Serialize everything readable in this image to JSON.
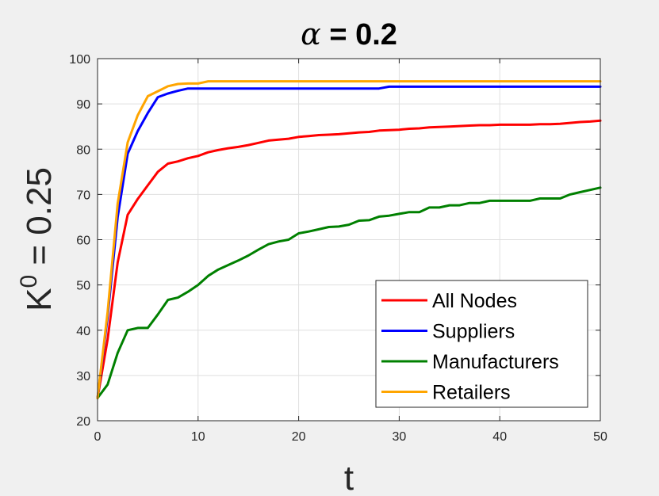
{
  "chart_data": {
    "type": "line",
    "title": {
      "symbol": "α",
      "rest": " = 0.2"
    },
    "xlabel": "t",
    "ylabel": {
      "base": "K",
      "sup": "0",
      "rest": " = 0.25"
    },
    "xlim": [
      0,
      50
    ],
    "ylim": [
      20,
      100
    ],
    "xticks": [
      0,
      10,
      20,
      30,
      40,
      50
    ],
    "yticks": [
      20,
      30,
      40,
      50,
      60,
      70,
      80,
      90,
      100
    ],
    "grid": true,
    "legend_position": "bottom-right",
    "x": [
      0,
      1,
      2,
      3,
      4,
      5,
      6,
      7,
      8,
      9,
      10,
      11,
      12,
      13,
      14,
      15,
      16,
      17,
      18,
      19,
      20,
      21,
      22,
      23,
      24,
      25,
      26,
      27,
      28,
      29,
      30,
      31,
      32,
      33,
      34,
      35,
      36,
      37,
      38,
      39,
      40,
      41,
      42,
      43,
      44,
      45,
      46,
      47,
      48,
      49,
      50
    ],
    "series": [
      {
        "name": "All Nodes",
        "color": "#ff0000",
        "values": [
          25,
          38,
          55,
          65.5,
          69,
          72,
          75,
          76.8,
          77.3,
          78,
          78.5,
          79.3,
          79.8,
          80.2,
          80.5,
          80.9,
          81.4,
          81.9,
          82.1,
          82.3,
          82.7,
          82.9,
          83.1,
          83.2,
          83.3,
          83.5,
          83.7,
          83.8,
          84.1,
          84.2,
          84.3,
          84.5,
          84.6,
          84.8,
          84.9,
          85.0,
          85.1,
          85.2,
          85.3,
          85.3,
          85.4,
          85.4,
          85.4,
          85.4,
          85.5,
          85.5,
          85.6,
          85.8,
          86.0,
          86.1,
          86.3
        ]
      },
      {
        "name": "Suppliers",
        "color": "#0000ff",
        "values": [
          25,
          43,
          65,
          79,
          84,
          88,
          91.5,
          92.3,
          92.9,
          93.4,
          93.4,
          93.4,
          93.4,
          93.4,
          93.4,
          93.4,
          93.4,
          93.4,
          93.4,
          93.4,
          93.4,
          93.4,
          93.4,
          93.4,
          93.4,
          93.4,
          93.4,
          93.4,
          93.4,
          93.8,
          93.8,
          93.8,
          93.8,
          93.8,
          93.8,
          93.8,
          93.8,
          93.8,
          93.8,
          93.8,
          93.8,
          93.8,
          93.8,
          93.8,
          93.8,
          93.8,
          93.8,
          93.8,
          93.8,
          93.8,
          93.8
        ]
      },
      {
        "name": "Manufacturers",
        "color": "#008000",
        "values": [
          25,
          28,
          35,
          40,
          40.5,
          40.5,
          43.5,
          46.7,
          47.2,
          48.5,
          50,
          52,
          53.4,
          54.4,
          55.4,
          56.5,
          57.8,
          59,
          59.6,
          60,
          61.4,
          61.8,
          62.3,
          62.8,
          62.9,
          63.3,
          64.2,
          64.3,
          65.1,
          65.3,
          65.7,
          66.1,
          66.1,
          67.1,
          67.1,
          67.6,
          67.6,
          68.1,
          68.1,
          68.6,
          68.6,
          68.6,
          68.6,
          68.6,
          69.1,
          69.1,
          69.1,
          70,
          70.5,
          71,
          71.5
        ]
      },
      {
        "name": "Retailers",
        "color": "#ffa500",
        "values": [
          25,
          44,
          68,
          81.5,
          87.5,
          91.7,
          92.8,
          93.9,
          94.4,
          94.5,
          94.5,
          95,
          95,
          95,
          95,
          95,
          95,
          95,
          95,
          95,
          95,
          95,
          95,
          95,
          95,
          95,
          95,
          95,
          95,
          95,
          95,
          95,
          95,
          95,
          95,
          95,
          95,
          95,
          95,
          95,
          95,
          95,
          95,
          95,
          95,
          95,
          95,
          95,
          95,
          95,
          95
        ]
      }
    ]
  }
}
